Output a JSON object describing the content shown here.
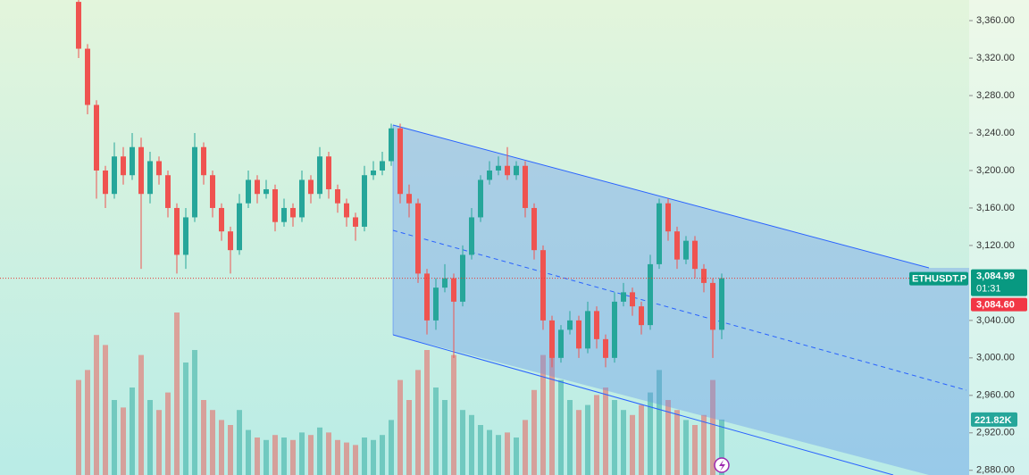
{
  "chart_data": {
    "type": "candlestick",
    "symbol": "ETHUSDT.P",
    "last_price_label": "3,084.99",
    "countdown": "01:31",
    "bid_label": "3,084.60",
    "volume_last_label": "221.82K",
    "ylim": [
      2875,
      3382
    ],
    "yticks": [
      {
        "value": 3360,
        "label": "3,360.00"
      },
      {
        "value": 3320,
        "label": "3,320.00"
      },
      {
        "value": 3280,
        "label": "3,280.00"
      },
      {
        "value": 3240,
        "label": "3,240.00"
      },
      {
        "value": 3200,
        "label": "3,200.00"
      },
      {
        "value": 3160,
        "label": "3,160.00"
      },
      {
        "value": 3120,
        "label": "3,120.00"
      },
      {
        "value": 3040,
        "label": "3,040.00"
      },
      {
        "value": 3000,
        "label": "3,000.00"
      },
      {
        "value": 2960,
        "label": "2,960.00"
      },
      {
        "value": 2920,
        "label": "2,920.00"
      },
      {
        "value": 2880,
        "label": "2,880.00"
      }
    ],
    "volume_lim": [
      0,
      1900
    ],
    "up_color": "#26a69a",
    "down_color": "#ef5350",
    "candles": [
      [
        3380,
        3385,
        3320,
        3330
      ],
      [
        3330,
        3335,
        3260,
        3270
      ],
      [
        3270,
        3275,
        3170,
        3200
      ],
      [
        3200,
        3205,
        3160,
        3175
      ],
      [
        3175,
        3230,
        3170,
        3215
      ],
      [
        3215,
        3225,
        3185,
        3195
      ],
      [
        3195,
        3240,
        3190,
        3225
      ],
      [
        3225,
        3235,
        3095,
        3175
      ],
      [
        3175,
        3220,
        3165,
        3210
      ],
      [
        3210,
        3215,
        3185,
        3195
      ],
      [
        3195,
        3200,
        3150,
        3160
      ],
      [
        3160,
        3165,
        3090,
        3110
      ],
      [
        3110,
        3160,
        3095,
        3150
      ],
      [
        3150,
        3240,
        3145,
        3225
      ],
      [
        3225,
        3230,
        3185,
        3195
      ],
      [
        3195,
        3200,
        3150,
        3160
      ],
      [
        3160,
        3165,
        3125,
        3135
      ],
      [
        3135,
        3140,
        3090,
        3115
      ],
      [
        3115,
        3175,
        3110,
        3165
      ],
      [
        3165,
        3200,
        3160,
        3190
      ],
      [
        3190,
        3195,
        3165,
        3175
      ],
      [
        3175,
        3190,
        3170,
        3180
      ],
      [
        3180,
        3185,
        3135,
        3145
      ],
      [
        3145,
        3170,
        3140,
        3160
      ],
      [
        3160,
        3165,
        3140,
        3150
      ],
      [
        3150,
        3200,
        3145,
        3190
      ],
      [
        3190,
        3195,
        3165,
        3175
      ],
      [
        3175,
        3225,
        3170,
        3215
      ],
      [
        3215,
        3220,
        3170,
        3180
      ],
      [
        3180,
        3185,
        3155,
        3165
      ],
      [
        3165,
        3170,
        3140,
        3150
      ],
      [
        3150,
        3155,
        3125,
        3140
      ],
      [
        3140,
        3205,
        3135,
        3195
      ],
      [
        3195,
        3210,
        3190,
        3200
      ],
      [
        3200,
        3220,
        3195,
        3210
      ],
      [
        3210,
        3250,
        3205,
        3245
      ],
      [
        3245,
        3250,
        3165,
        3175
      ],
      [
        3175,
        3185,
        3150,
        3165
      ],
      [
        3165,
        3170,
        3080,
        3090
      ],
      [
        3090,
        3095,
        3025,
        3040
      ],
      [
        3040,
        3085,
        3030,
        3075
      ],
      [
        3075,
        3100,
        3070,
        3085
      ],
      [
        3085,
        3090,
        3000,
        3060
      ],
      [
        3060,
        3120,
        3055,
        3110
      ],
      [
        3110,
        3160,
        3105,
        3150
      ],
      [
        3150,
        3195,
        3145,
        3190
      ],
      [
        3190,
        3210,
        3185,
        3200
      ],
      [
        3200,
        3215,
        3195,
        3205
      ],
      [
        3205,
        3225,
        3190,
        3195
      ],
      [
        3195,
        3210,
        3190,
        3205
      ],
      [
        3205,
        3210,
        3150,
        3160
      ],
      [
        3160,
        3165,
        3105,
        3115
      ],
      [
        3115,
        3120,
        3030,
        3040
      ],
      [
        3040,
        3045,
        2990,
        3000
      ],
      [
        3000,
        3035,
        2995,
        3030
      ],
      [
        3030,
        3050,
        3025,
        3040
      ],
      [
        3040,
        3045,
        3000,
        3010
      ],
      [
        3010,
        3060,
        3005,
        3050
      ],
      [
        3050,
        3055,
        3010,
        3020
      ],
      [
        3020,
        3025,
        2990,
        3000
      ],
      [
        3000,
        3070,
        2995,
        3060
      ],
      [
        3060,
        3080,
        3055,
        3070
      ],
      [
        3070,
        3075,
        3045,
        3055
      ],
      [
        3055,
        3060,
        3025,
        3035
      ],
      [
        3035,
        3110,
        3030,
        3100
      ],
      [
        3100,
        3170,
        3095,
        3165
      ],
      [
        3165,
        3170,
        3125,
        3135
      ],
      [
        3135,
        3140,
        3095,
        3105
      ],
      [
        3105,
        3130,
        3100,
        3125
      ],
      [
        3125,
        3130,
        3085,
        3095
      ],
      [
        3095,
        3100,
        3070,
        3080
      ],
      [
        3080,
        3085,
        3000,
        3030
      ],
      [
        3030,
        3090,
        3020,
        3084.99
      ]
    ],
    "volume": [
      380,
      420,
      560,
      520,
      300,
      270,
      350,
      480,
      300,
      260,
      330,
      650,
      450,
      500,
      300,
      260,
      220,
      200,
      260,
      180,
      150,
      140,
      160,
      150,
      140,
      170,
      160,
      190,
      170,
      140,
      130,
      120,
      150,
      140,
      160,
      220,
      380,
      300,
      420,
      500,
      350,
      300,
      480,
      260,
      240,
      200,
      180,
      160,
      170,
      150,
      220,
      340,
      480,
      560,
      380,
      300,
      260,
      280,
      320,
      350,
      300,
      260,
      240,
      280,
      330,
      420,
      300,
      260,
      220,
      200,
      240,
      380,
      221.82
    ]
  }
}
